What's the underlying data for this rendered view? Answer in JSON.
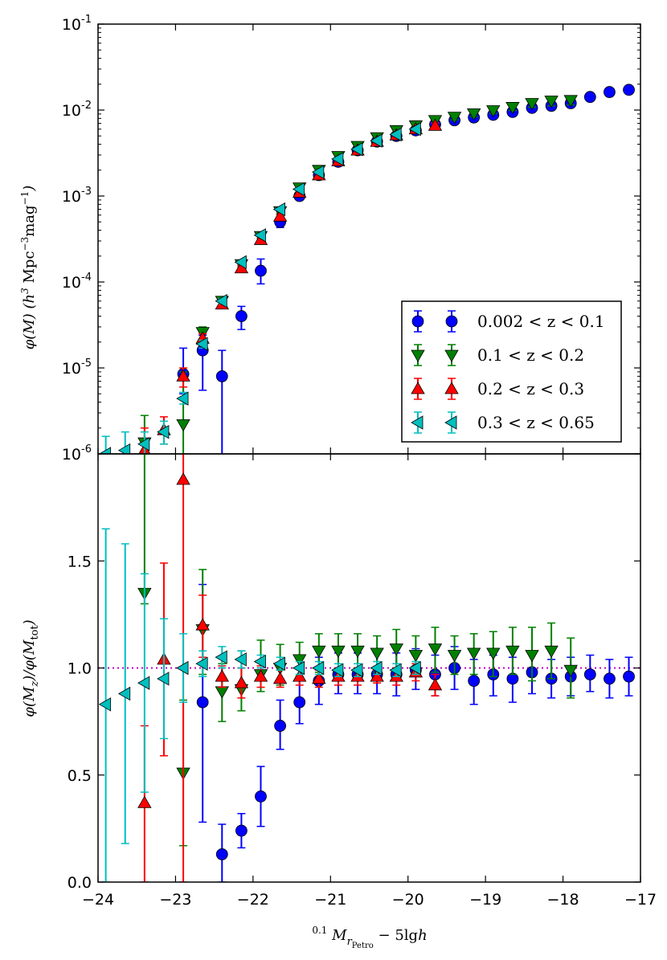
{
  "chart_data": [
    {
      "id": "top",
      "type": "scatter",
      "yscale": "log",
      "xlim": [
        -24,
        -17
      ],
      "ylim": [
        1e-06,
        0.1
      ],
      "ylabel": "φ(M) (h³ Mpc⁻³ mag⁻¹)",
      "yticks": [
        {
          "v": 1e-06,
          "label": "10-6"
        },
        {
          "v": 1e-05,
          "label": "10-5"
        },
        {
          "v": 0.0001,
          "label": "10-4"
        },
        {
          "v": 0.001,
          "label": "10-3"
        },
        {
          "v": 0.01,
          "label": "10-2"
        },
        {
          "v": 0.1,
          "label": "10-1"
        }
      ],
      "legend": {
        "position": "right",
        "entries": [
          {
            "label": "0.002 < z < 0.1",
            "color": "#0000ff",
            "marker": "circle"
          },
          {
            "label": "0.1 < z < 0.2",
            "color": "#008000",
            "marker": "triangle-down"
          },
          {
            "label": "0.2 < z < 0.3",
            "color": "#ff0000",
            "marker": "triangle-up"
          },
          {
            "label": "0.3 < z < 0.65",
            "color": "#00bfbf",
            "marker": "triangle-left"
          }
        ]
      },
      "series": [
        {
          "name": "0.002 < z < 0.1",
          "color": "#0000ff",
          "marker": "circle",
          "x": [
            -22.9,
            -22.65,
            -22.4,
            -22.15,
            -21.9,
            -21.65,
            -21.4,
            -21.15,
            -20.9,
            -20.65,
            -20.4,
            -20.15,
            -19.9,
            -19.65,
            -19.4,
            -19.15,
            -18.9,
            -18.65,
            -18.4,
            -18.15,
            -17.9,
            -17.65,
            -17.4,
            -17.15
          ],
          "y": [
            8.5e-06,
            1.6e-05,
            8e-06,
            4e-05,
            0.000135,
            0.0005,
            0.001,
            0.00175,
            0.0025,
            0.0034,
            0.0043,
            0.005,
            0.0058,
            0.0068,
            0.0076,
            0.0082,
            0.0088,
            0.0095,
            0.0106,
            0.0112,
            0.012,
            0.0142,
            0.0162,
            0.0172
          ],
          "ylo": [
            5e-06,
            5.5e-06,
            3e-07,
            2.8e-05,
            9.5e-05,
            0.00043,
            0.00092,
            0.00165,
            0.0024,
            0.0033,
            0.0041,
            0.0048,
            0.0055,
            0.0064,
            0.0071,
            0.0076,
            0.0081,
            0.0087,
            0.0097,
            0.0103,
            0.011,
            0.0132,
            0.0152,
            0.0162
          ],
          "yhi": [
            1.7e-05,
            2.4e-05,
            1.6e-05,
            5.2e-05,
            0.000185,
            0.00057,
            0.00108,
            0.00185,
            0.0026,
            0.00355,
            0.0045,
            0.0053,
            0.0061,
            0.0072,
            0.0081,
            0.0089,
            0.0095,
            0.0103,
            0.0115,
            0.0121,
            0.013,
            0.0152,
            0.0172,
            0.0182
          ]
        },
        {
          "name": "0.1 < z < 0.2",
          "color": "#008000",
          "marker": "triangle-down",
          "x": [
            -23.4,
            -22.9,
            -22.65,
            -22.4,
            -22.15,
            -21.9,
            -21.65,
            -21.4,
            -21.15,
            -20.9,
            -20.65,
            -20.4,
            -20.15,
            -19.9,
            -19.65,
            -19.4,
            -19.15,
            -18.9,
            -18.65,
            -18.4,
            -18.15,
            -17.9
          ],
          "y": [
            1.35e-06,
            2.2e-06,
            2.6e-05,
            6e-05,
            0.00016,
            0.00034,
            0.00066,
            0.00125,
            0.002,
            0.0029,
            0.0038,
            0.0048,
            0.0058,
            0.0066,
            0.0076,
            0.0083,
            0.0091,
            0.0099,
            0.0108,
            0.012,
            0.0128,
            0.013
          ],
          "ylo": [
            5e-07,
            5e-07,
            2.1e-05,
            5.4e-05,
            0.00015,
            0.00032,
            0.00062,
            0.00118,
            0.0019,
            0.00275,
            0.0036,
            0.00455,
            0.0055,
            0.0062,
            0.0071,
            0.0077,
            0.0084,
            0.0091,
            0.0099,
            0.0108,
            0.0112,
            0.0115
          ],
          "yhi": [
            2.8e-06,
            9e-06,
            3e-05,
            6.6e-05,
            0.00017,
            0.00036,
            0.0007,
            0.00132,
            0.0021,
            0.00305,
            0.004,
            0.0051,
            0.0061,
            0.007,
            0.0081,
            0.0089,
            0.0098,
            0.0107,
            0.0117,
            0.0132,
            0.0144,
            0.0145
          ]
        },
        {
          "name": "0.2 < z < 0.3",
          "color": "#ff0000",
          "marker": "triangle-up",
          "x": [
            -23.4,
            -23.15,
            -22.9,
            -22.65,
            -22.4,
            -22.15,
            -21.9,
            -21.65,
            -21.4,
            -21.15,
            -20.9,
            -20.65,
            -20.4,
            -20.15,
            -19.9,
            -19.65
          ],
          "y": [
            1.1e-06,
            1.9e-06,
            8e-06,
            2.2e-05,
            5.5e-05,
            0.000145,
            0.00031,
            0.00058,
            0.0011,
            0.00175,
            0.00255,
            0.0034,
            0.0043,
            0.0051,
            0.006,
            0.0066
          ],
          "ylo": [
            5e-07,
            1.3e-06,
            6e-06,
            1.9e-05,
            5e-05,
            0.000135,
            0.00029,
            0.00055,
            0.00104,
            0.00166,
            0.00242,
            0.00325,
            0.0041,
            0.00485,
            0.0057,
            0.0061
          ],
          "yhi": [
            2e-06,
            2.7e-06,
            1e-05,
            2.5e-05,
            6e-05,
            0.000155,
            0.00033,
            0.00061,
            0.00116,
            0.00184,
            0.00268,
            0.00355,
            0.0045,
            0.00535,
            0.0063,
            0.0071
          ]
        },
        {
          "name": "0.3 < z < 0.65",
          "color": "#00bfbf",
          "marker": "triangle-left",
          "x": [
            -23.9,
            -23.65,
            -23.4,
            -23.15,
            -22.9,
            -22.65,
            -22.4,
            -22.15,
            -21.9,
            -21.65,
            -21.4,
            -21.15,
            -20.9,
            -20.65,
            -20.4,
            -20.15,
            -19.9
          ],
          "y": [
            1e-06,
            1.1e-06,
            1.3e-06,
            1.8e-06,
            4.4e-06,
            1.9e-05,
            6e-05,
            0.00017,
            0.00035,
            0.0007,
            0.0012,
            0.0019,
            0.0027,
            0.0035,
            0.0044,
            0.0052,
            0.006
          ],
          "ylo": [
            4e-07,
            5e-07,
            8e-07,
            1.3e-06,
            3.8e-06,
            1.7e-05,
            5.6e-05,
            0.000162,
            0.000335,
            0.00067,
            0.00114,
            0.00182,
            0.0026,
            0.00338,
            0.00425,
            0.005,
            0.00575
          ],
          "yhi": [
            1.6e-06,
            1.8e-06,
            1.8e-06,
            2.4e-06,
            5.2e-06,
            2.1e-05,
            6.4e-05,
            0.000178,
            0.000365,
            0.00073,
            0.00126,
            0.00198,
            0.0028,
            0.00362,
            0.00455,
            0.0054,
            0.00625
          ]
        }
      ]
    },
    {
      "id": "bottom",
      "type": "scatter",
      "yscale": "linear",
      "xlim": [
        -24,
        -17
      ],
      "ylim": [
        0.0,
        2.0
      ],
      "xlabel": "⁰·¹M_rPetro − 5lgh",
      "ylabel": "φ(M_z)/φ(M_tot)",
      "xticks": [
        {
          "v": -24,
          "label": "−24"
        },
        {
          "v": -23,
          "label": "−23"
        },
        {
          "v": -22,
          "label": "−22"
        },
        {
          "v": -21,
          "label": "−21"
        },
        {
          "v": -20,
          "label": "−20"
        },
        {
          "v": -19,
          "label": "−19"
        },
        {
          "v": -18,
          "label": "−18"
        },
        {
          "v": -17,
          "label": "−17"
        }
      ],
      "yticks": [
        {
          "v": 0.0,
          "label": "0.0"
        },
        {
          "v": 0.5,
          "label": "0.5"
        },
        {
          "v": 1.0,
          "label": "1.0"
        },
        {
          "v": 1.5,
          "label": "1.5"
        }
      ],
      "reference_line": {
        "y": 1.0,
        "color": "#bf00bf",
        "style": "dotted"
      },
      "series": [
        {
          "name": "0.002 < z < 0.1",
          "color": "#0000ff",
          "marker": "circle",
          "x": [
            -22.65,
            -22.4,
            -22.15,
            -21.9,
            -21.65,
            -21.4,
            -21.15,
            -20.9,
            -20.65,
            -20.4,
            -20.15,
            -19.9,
            -19.65,
            -19.4,
            -19.15,
            -18.9,
            -18.65,
            -18.4,
            -18.15,
            -17.9,
            -17.65,
            -17.4,
            -17.15
          ],
          "y": [
            0.84,
            0.13,
            0.24,
            0.4,
            0.73,
            0.84,
            0.94,
            0.97,
            0.97,
            0.97,
            0.97,
            0.99,
            0.97,
            1.0,
            0.94,
            0.97,
            0.95,
            0.98,
            0.95,
            0.96,
            0.97,
            0.95,
            0.96
          ],
          "ylo": [
            0.28,
            0.0,
            0.16,
            0.26,
            0.62,
            0.74,
            0.83,
            0.88,
            0.88,
            0.88,
            0.87,
            0.9,
            0.87,
            0.9,
            0.83,
            0.87,
            0.84,
            0.88,
            0.86,
            0.87,
            0.89,
            0.86,
            0.87
          ],
          "yhi": [
            1.39,
            0.27,
            0.32,
            0.54,
            0.85,
            0.95,
            1.05,
            1.07,
            1.07,
            1.07,
            1.07,
            1.09,
            1.06,
            1.1,
            1.04,
            1.06,
            1.05,
            1.07,
            1.04,
            1.05,
            1.06,
            1.04,
            1.05
          ]
        },
        {
          "name": "0.1 < z < 0.2",
          "color": "#008000",
          "marker": "triangle-down",
          "x": [
            -23.4,
            -22.9,
            -22.65,
            -22.4,
            -22.15,
            -21.9,
            -21.65,
            -21.4,
            -21.15,
            -20.9,
            -20.65,
            -20.4,
            -20.15,
            -19.9,
            -19.65,
            -19.4,
            -19.15,
            -18.9,
            -18.65,
            -18.4,
            -18.15,
            -17.9
          ],
          "y": [
            1.35,
            0.51,
            1.18,
            0.89,
            0.9,
            0.97,
            1.0,
            1.04,
            1.08,
            1.08,
            1.08,
            1.07,
            1.09,
            1.06,
            1.09,
            1.06,
            1.07,
            1.07,
            1.08,
            1.06,
            1.08,
            0.99
          ],
          "ylo": [
            1.3,
            0.17,
            0.97,
            0.75,
            0.8,
            0.89,
            0.92,
            0.96,
            0.98,
            0.99,
            1.0,
            0.98,
            0.99,
            0.97,
            0.98,
            0.97,
            0.97,
            0.96,
            0.97,
            0.94,
            0.95,
            0.86
          ],
          "yhi": [
            2.0,
            0.85,
            1.46,
            1.02,
            1.08,
            1.13,
            1.11,
            1.12,
            1.16,
            1.16,
            1.16,
            1.15,
            1.18,
            1.15,
            1.19,
            1.15,
            1.16,
            1.17,
            1.19,
            1.19,
            1.21,
            1.14
          ]
        },
        {
          "name": "0.2 < z < 0.3",
          "color": "#ff0000",
          "marker": "triangle-up",
          "x": [
            -23.4,
            -23.15,
            -22.9,
            -22.65,
            -22.4,
            -22.15,
            -21.9,
            -21.65,
            -21.4,
            -21.15,
            -20.9,
            -20.65,
            -20.4,
            -20.15,
            -19.9,
            -19.65
          ],
          "y": [
            0.37,
            1.04,
            1.88,
            1.2,
            0.96,
            0.93,
            0.96,
            0.95,
            0.96,
            0.95,
            0.96,
            0.96,
            0.96,
            0.96,
            0.98,
            0.92
          ],
          "ylo": [
            0.0,
            0.59,
            0.0,
            1.05,
            0.91,
            0.86,
            0.91,
            0.91,
            0.92,
            0.91,
            0.92,
            0.92,
            0.93,
            0.92,
            0.94,
            0.87
          ],
          "yhi": [
            0.73,
            1.49,
            2.0,
            1.34,
            1.01,
            1.0,
            1.01,
            0.99,
            1.0,
            0.99,
            1.0,
            1.0,
            0.99,
            1.0,
            1.02,
            0.97
          ]
        },
        {
          "name": "0.3 < z < 0.65",
          "color": "#00bfbf",
          "marker": "triangle-left",
          "x": [
            -23.9,
            -23.65,
            -23.4,
            -23.15,
            -22.9,
            -22.65,
            -22.4,
            -22.15,
            -21.9,
            -21.65,
            -21.4,
            -21.15,
            -20.9,
            -20.65,
            -20.4,
            -20.15,
            -19.9
          ],
          "y": [
            0.83,
            0.88,
            0.93,
            0.95,
            1.0,
            1.02,
            1.05,
            1.04,
            1.03,
            1.02,
            1.0,
            1.0,
            0.99,
            0.99,
            1.0,
            0.99,
            1.0
          ],
          "ylo": [
            0.0,
            0.18,
            0.42,
            0.67,
            0.84,
            0.96,
            1.0,
            1.0,
            1.0,
            0.99,
            0.97,
            0.97,
            0.96,
            0.96,
            0.97,
            0.96,
            0.97
          ],
          "yhi": [
            1.65,
            1.58,
            1.44,
            1.23,
            1.16,
            1.08,
            1.1,
            1.08,
            1.06,
            1.05,
            1.03,
            1.03,
            1.02,
            1.02,
            1.03,
            1.02,
            1.03
          ]
        }
      ]
    }
  ]
}
